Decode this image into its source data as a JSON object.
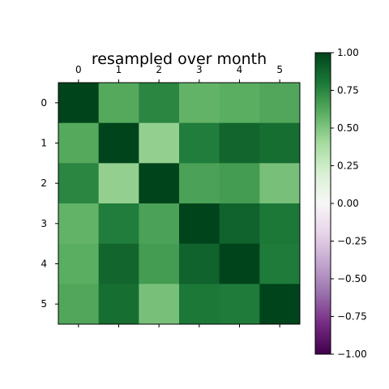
{
  "chart_data": {
    "type": "heatmap",
    "title": "resampled over month",
    "xlabel": "",
    "ylabel": "",
    "x_ticks": [
      "0",
      "1",
      "2",
      "3",
      "4",
      "5"
    ],
    "y_ticks": [
      "0",
      "1",
      "2",
      "3",
      "4",
      "5"
    ],
    "x_tick_position": "top",
    "matrix": [
      [
        1.0,
        0.62,
        0.75,
        0.58,
        0.6,
        0.63
      ],
      [
        0.62,
        1.0,
        0.45,
        0.78,
        0.87,
        0.84
      ],
      [
        0.75,
        0.45,
        1.0,
        0.65,
        0.67,
        0.52
      ],
      [
        0.58,
        0.78,
        0.65,
        1.0,
        0.88,
        0.8
      ],
      [
        0.6,
        0.87,
        0.67,
        0.88,
        1.0,
        0.79
      ],
      [
        0.63,
        0.84,
        0.52,
        0.8,
        0.79,
        1.0
      ]
    ],
    "vmin": -1.0,
    "vmax": 1.0,
    "colormap": "PRGn",
    "colorbar": {
      "ticks": [
        "1.00",
        "0.75",
        "0.50",
        "0.25",
        "0.00",
        "−0.25",
        "−0.50",
        "−0.75",
        "−1.00"
      ],
      "tick_values": [
        1.0,
        0.75,
        0.5,
        0.25,
        0.0,
        -0.25,
        -0.5,
        -0.75,
        -1.0
      ],
      "placement": "right"
    },
    "grid": false
  }
}
